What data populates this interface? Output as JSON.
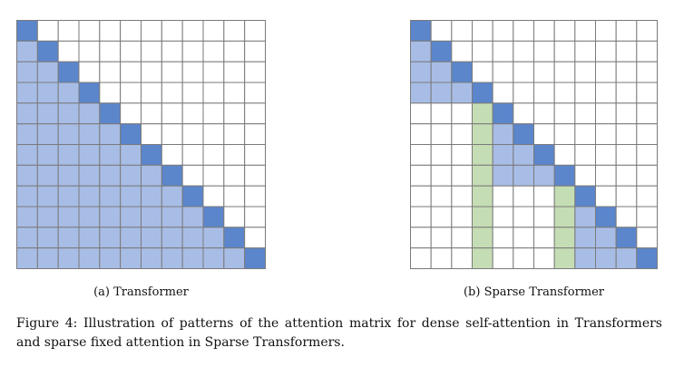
{
  "figure": {
    "number_label": "Figure 4:",
    "caption": "Illustration of patterns of the attention matrix for dense self-attention in Transformers and sparse fixed attention in Sparse Transformers."
  },
  "panels": [
    {
      "id": "a",
      "label": "(a) Transformer",
      "size": 12,
      "pattern": "dense-causal"
    },
    {
      "id": "b",
      "label": "(b) Sparse Transformer",
      "size": 12,
      "pattern": "sparse-fixed",
      "block_size": 4,
      "summary_columns": [
        3,
        7
      ]
    }
  ],
  "colors": {
    "diagonal": "#5b86cc",
    "attended": "#a8bde6",
    "summary": "#c5ddb4",
    "empty": "#ffffff",
    "grid": "#7a7a7a"
  }
}
